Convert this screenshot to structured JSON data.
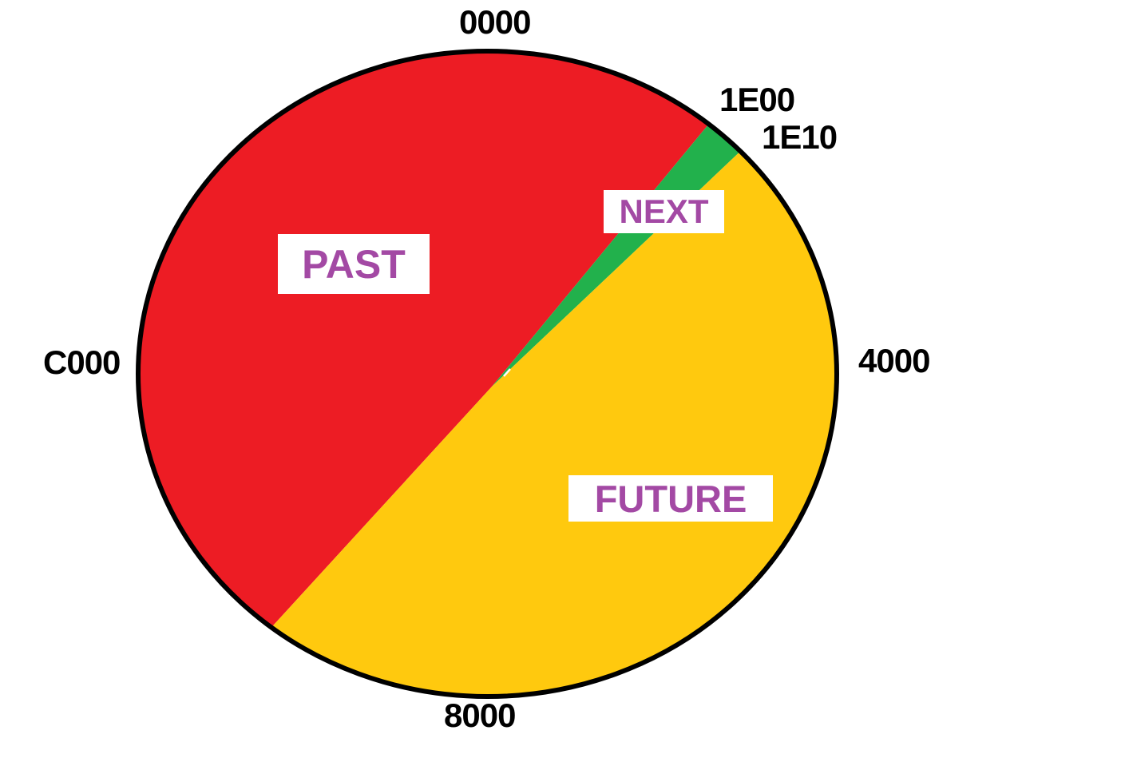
{
  "chart_data": {
    "type": "pie",
    "title": "",
    "legend_position": "none",
    "outline_color": "#000000",
    "label_text_color": "#A349A4",
    "label_box_color": "#FFFFFF",
    "background_color": "#FFFFFF",
    "tick_labels": [
      {
        "text": "0000",
        "angle_deg": 0
      },
      {
        "text": "1E00",
        "angle_deg": 39.3
      },
      {
        "text": "1E10",
        "angle_deg": 46.4
      },
      {
        "text": "4000",
        "angle_deg": 90
      },
      {
        "text": "8000",
        "angle_deg": 180
      },
      {
        "text": "C000",
        "angle_deg": 270
      }
    ],
    "sections": [
      {
        "label": "PAST",
        "color": "#ED1C24",
        "start_angle_deg": 218.2,
        "end_angle_deg": 399.3
      },
      {
        "label": "NEXT",
        "color": "#22B14C",
        "start_angle_deg": 39.3,
        "end_angle_deg": 46.4
      },
      {
        "label": "FUTURE",
        "color": "#FFC90E",
        "start_angle_deg": 46.4,
        "end_angle_deg": 218.2
      }
    ],
    "boundaries": [
      {
        "between": "PAST/NEXT",
        "label": "1E00"
      },
      {
        "between": "NEXT/FUTURE",
        "label": "1E10"
      }
    ]
  }
}
